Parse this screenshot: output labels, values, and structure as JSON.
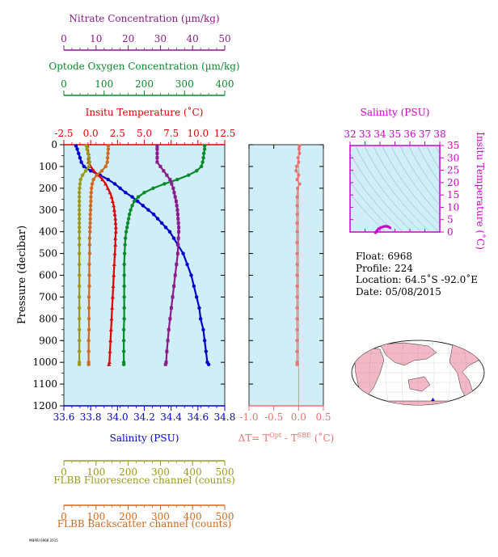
{
  "chart_data": [
    {
      "type": "line",
      "panel": "main-profiles",
      "ylabel": "Pressure (decibar)",
      "y_ticks": [
        0,
        100,
        200,
        300,
        400,
        500,
        600,
        700,
        800,
        900,
        1000,
        1100,
        1200
      ],
      "ylim": [
        1200,
        0
      ],
      "axes": [
        {
          "key": "nitrate",
          "label": "Nitrate Concentration (µm/kg)",
          "position": "top",
          "range": [
            0,
            50
          ],
          "ticks": [
            0,
            10,
            20,
            30,
            40,
            50
          ],
          "color": "#8b1a8b"
        },
        {
          "key": "oxygen",
          "label": "Optode Oxygen Concentration (µm/kg)",
          "position": "top",
          "range": [
            0,
            400
          ],
          "ticks": [
            0,
            100,
            200,
            300,
            400
          ],
          "color": "#0a8a2a"
        },
        {
          "key": "temperature",
          "label": "Insitu Temperature (˚C)",
          "position": "top",
          "range": [
            -2.5,
            12.5
          ],
          "ticks": [
            "-2.5",
            "0.0",
            "2.5",
            "5.0",
            "7.5",
            "10.0",
            "12.5"
          ],
          "color": "#e00000"
        },
        {
          "key": "salinity",
          "label": "Salinity (PSU)",
          "position": "bottom",
          "range": [
            33.6,
            34.8
          ],
          "ticks": [
            "33.6",
            "33.8",
            "34.0",
            "34.2",
            "34.4",
            "34.6",
            "34.8"
          ],
          "color": "#0000cc"
        },
        {
          "key": "fluorescence",
          "label": "FLBB Fluorescence channel (counts)",
          "position": "bottom",
          "range": [
            0,
            500
          ],
          "ticks": [
            0,
            100,
            200,
            300,
            400,
            500
          ],
          "color": "#9a9a1a"
        },
        {
          "key": "backscatter",
          "label": "FLBB Backscatter channel (counts)",
          "position": "bottom",
          "range": [
            0,
            500
          ],
          "ticks": [
            0,
            100,
            200,
            300,
            400,
            500
          ],
          "color": "#d2691e"
        }
      ],
      "series": [
        {
          "axis": "salinity",
          "color": "#0000cc",
          "marker": "circle",
          "y": [
            5,
            20,
            40,
            60,
            80,
            100,
            120,
            140,
            160,
            180,
            200,
            220,
            240,
            260,
            280,
            300,
            320,
            340,
            360,
            380,
            400,
            430,
            460,
            500,
            550,
            600,
            650,
            700,
            750,
            800,
            850,
            900,
            950,
            1000,
            1010
          ],
          "x": [
            33.69,
            33.7,
            33.71,
            33.72,
            33.73,
            33.75,
            33.8,
            33.87,
            33.93,
            33.98,
            34.02,
            34.06,
            34.11,
            34.15,
            34.19,
            34.23,
            34.27,
            34.3,
            34.33,
            34.36,
            34.39,
            34.42,
            34.45,
            34.49,
            34.52,
            34.55,
            34.57,
            34.59,
            34.61,
            34.62,
            34.64,
            34.65,
            34.66,
            34.67,
            34.68
          ]
        },
        {
          "axis": "temperature",
          "color": "#e00000",
          "marker": "triangle",
          "y": [
            5,
            20,
            40,
            60,
            80,
            100,
            120,
            140,
            160,
            180,
            200,
            220,
            240,
            260,
            280,
            300,
            320,
            340,
            360,
            380,
            400,
            430,
            460,
            500,
            550,
            600,
            650,
            700,
            750,
            800,
            850,
            900,
            950,
            1000,
            1010
          ],
          "x": [
            -0.3,
            -0.3,
            -0.2,
            -0.2,
            -0.2,
            0.0,
            0.3,
            0.7,
            1.1,
            1.4,
            1.6,
            1.8,
            1.95,
            2.05,
            2.15,
            2.2,
            2.25,
            2.3,
            2.32,
            2.35,
            2.35,
            2.3,
            2.3,
            2.25,
            2.2,
            2.15,
            2.1,
            2.05,
            2.0,
            1.95,
            1.9,
            1.85,
            1.8,
            1.75,
            1.7
          ]
        },
        {
          "axis": "oxygen",
          "color": "#0a8a2a",
          "marker": "circle",
          "y": [
            5,
            20,
            40,
            60,
            80,
            100,
            120,
            140,
            160,
            180,
            200,
            220,
            240,
            260,
            280,
            300,
            320,
            340,
            360,
            380,
            400,
            430,
            460,
            500,
            550,
            600,
            650,
            700,
            750,
            800,
            850,
            900,
            950,
            1000,
            1010
          ],
          "x": [
            350,
            350,
            348,
            347,
            345,
            342,
            330,
            310,
            282,
            250,
            222,
            200,
            185,
            175,
            170,
            166,
            163,
            161,
            159,
            157,
            155,
            153,
            152,
            151,
            150,
            150,
            150,
            150,
            150,
            150,
            149,
            149,
            149,
            149,
            149
          ]
        },
        {
          "axis": "nitrate",
          "color": "#8b1a8b",
          "marker": "square",
          "y": [
            5,
            20,
            40,
            60,
            80,
            100,
            120,
            140,
            160,
            180,
            200,
            220,
            240,
            260,
            280,
            300,
            320,
            340,
            360,
            380,
            400,
            430,
            460,
            500,
            550,
            600,
            650,
            700,
            750,
            800,
            850,
            900,
            950,
            1000,
            1010
          ],
          "x": [
            29,
            29,
            29,
            29,
            29,
            30,
            31,
            32,
            33,
            33.5,
            34,
            34.3,
            34.6,
            34.9,
            35.1,
            35.3,
            35.4,
            35.5,
            35.6,
            35.7,
            35.7,
            35.6,
            35.5,
            35.4,
            35.0,
            34.6,
            34.2,
            33.8,
            33.4,
            33.0,
            32.6,
            32.3,
            32.0,
            31.8,
            31.6
          ]
        },
        {
          "axis": "backscatter",
          "color": "#d2691e",
          "marker": "circle",
          "y": [
            5,
            20,
            40,
            60,
            80,
            100,
            120,
            140,
            160,
            180,
            200,
            220,
            240,
            260,
            280,
            300,
            320,
            340,
            360,
            380,
            400,
            430,
            460,
            500,
            550,
            600,
            650,
            700,
            750,
            800,
            850,
            900,
            950,
            1000,
            1010
          ],
          "x": [
            138,
            138,
            137,
            136,
            135,
            130,
            118,
            102,
            92,
            88,
            86,
            85,
            84,
            84,
            83,
            83,
            82,
            82,
            82,
            81,
            81,
            80,
            80,
            80,
            79,
            79,
            79,
            78,
            78,
            78,
            78,
            77,
            77,
            77,
            77
          ]
        },
        {
          "axis": "fluorescence",
          "color": "#9a9a1a",
          "marker": "circle",
          "y": [
            5,
            20,
            40,
            60,
            80,
            100,
            120,
            140,
            160,
            180,
            200,
            220,
            240,
            260,
            280,
            300,
            320,
            340,
            360,
            380,
            400,
            430,
            460,
            500,
            550,
            600,
            650,
            700,
            750,
            800,
            850,
            900,
            950,
            1000,
            1010
          ],
          "x": [
            70,
            72,
            75,
            78,
            80,
            78,
            68,
            58,
            52,
            50,
            49,
            48,
            48,
            48,
            48,
            48,
            48,
            48,
            48,
            48,
            48,
            48,
            48,
            48,
            48,
            48,
            48,
            48,
            48,
            48,
            48,
            48,
            48,
            48,
            48
          ]
        }
      ]
    },
    {
      "type": "line",
      "panel": "delta-t",
      "xlabel_main": "ΔT= T",
      "xlabel_sup1": "Opt",
      "xlabel_mid": " - T",
      "xlabel_sup2": "SBE",
      "xlabel_end": " (˚C)",
      "xlim": [
        -1.0,
        0.5
      ],
      "x_ticks": [
        "-1.0",
        "-0.5",
        "0.0",
        "0.5"
      ],
      "color": "#f07070",
      "series": [
        {
          "y": [
            5,
            20,
            40,
            60,
            80,
            100,
            120,
            140,
            160,
            180,
            200,
            240,
            280,
            320,
            360,
            400,
            450,
            500,
            550,
            600,
            650,
            700,
            750,
            800,
            850,
            900,
            950,
            1000,
            1010
          ],
          "x": [
            0.02,
            0.01,
            0.02,
            -0.01,
            0.0,
            -0.04,
            -0.05,
            0.0,
            -0.03,
            0.02,
            -0.02,
            -0.03,
            -0.03,
            -0.03,
            -0.03,
            -0.03,
            -0.03,
            -0.03,
            -0.03,
            -0.03,
            -0.03,
            -0.03,
            -0.03,
            -0.03,
            -0.03,
            -0.03,
            -0.03,
            -0.03,
            -0.03
          ]
        }
      ]
    },
    {
      "type": "scatter",
      "panel": "ts-diagram",
      "title": "Salinity (PSU)",
      "ylabel": "Insitu Temperature (˚C)",
      "xlim": [
        32,
        38
      ],
      "ylim": [
        0,
        35
      ],
      "x_ticks": [
        "32",
        "33",
        "34",
        "35",
        "36",
        "37",
        "38"
      ],
      "y_ticks": [
        "0",
        "5",
        "10",
        "15",
        "20",
        "25",
        "30",
        "35"
      ],
      "color": "#d000d0",
      "series": [
        {
          "x": [
            33.7,
            33.72,
            33.75,
            33.8,
            33.9,
            34.0,
            34.1,
            34.2,
            34.3,
            34.4,
            34.5,
            34.6,
            34.68
          ],
          "y": [
            -0.3,
            -0.2,
            0.0,
            0.5,
            1.3,
            1.6,
            1.9,
            2.1,
            2.3,
            2.35,
            2.25,
            2.0,
            1.7
          ]
        }
      ]
    }
  ],
  "info": {
    "float_label": "Float:",
    "float_value": "6968",
    "profile_label": "Profile:",
    "profile_value": "224",
    "location_label": "Location:",
    "location_value": "64.5˚S  -92.0˚E",
    "date_label": "Date:",
    "date_value": "05/08/2015"
  },
  "footer_code": "MBARI 6968 2015"
}
